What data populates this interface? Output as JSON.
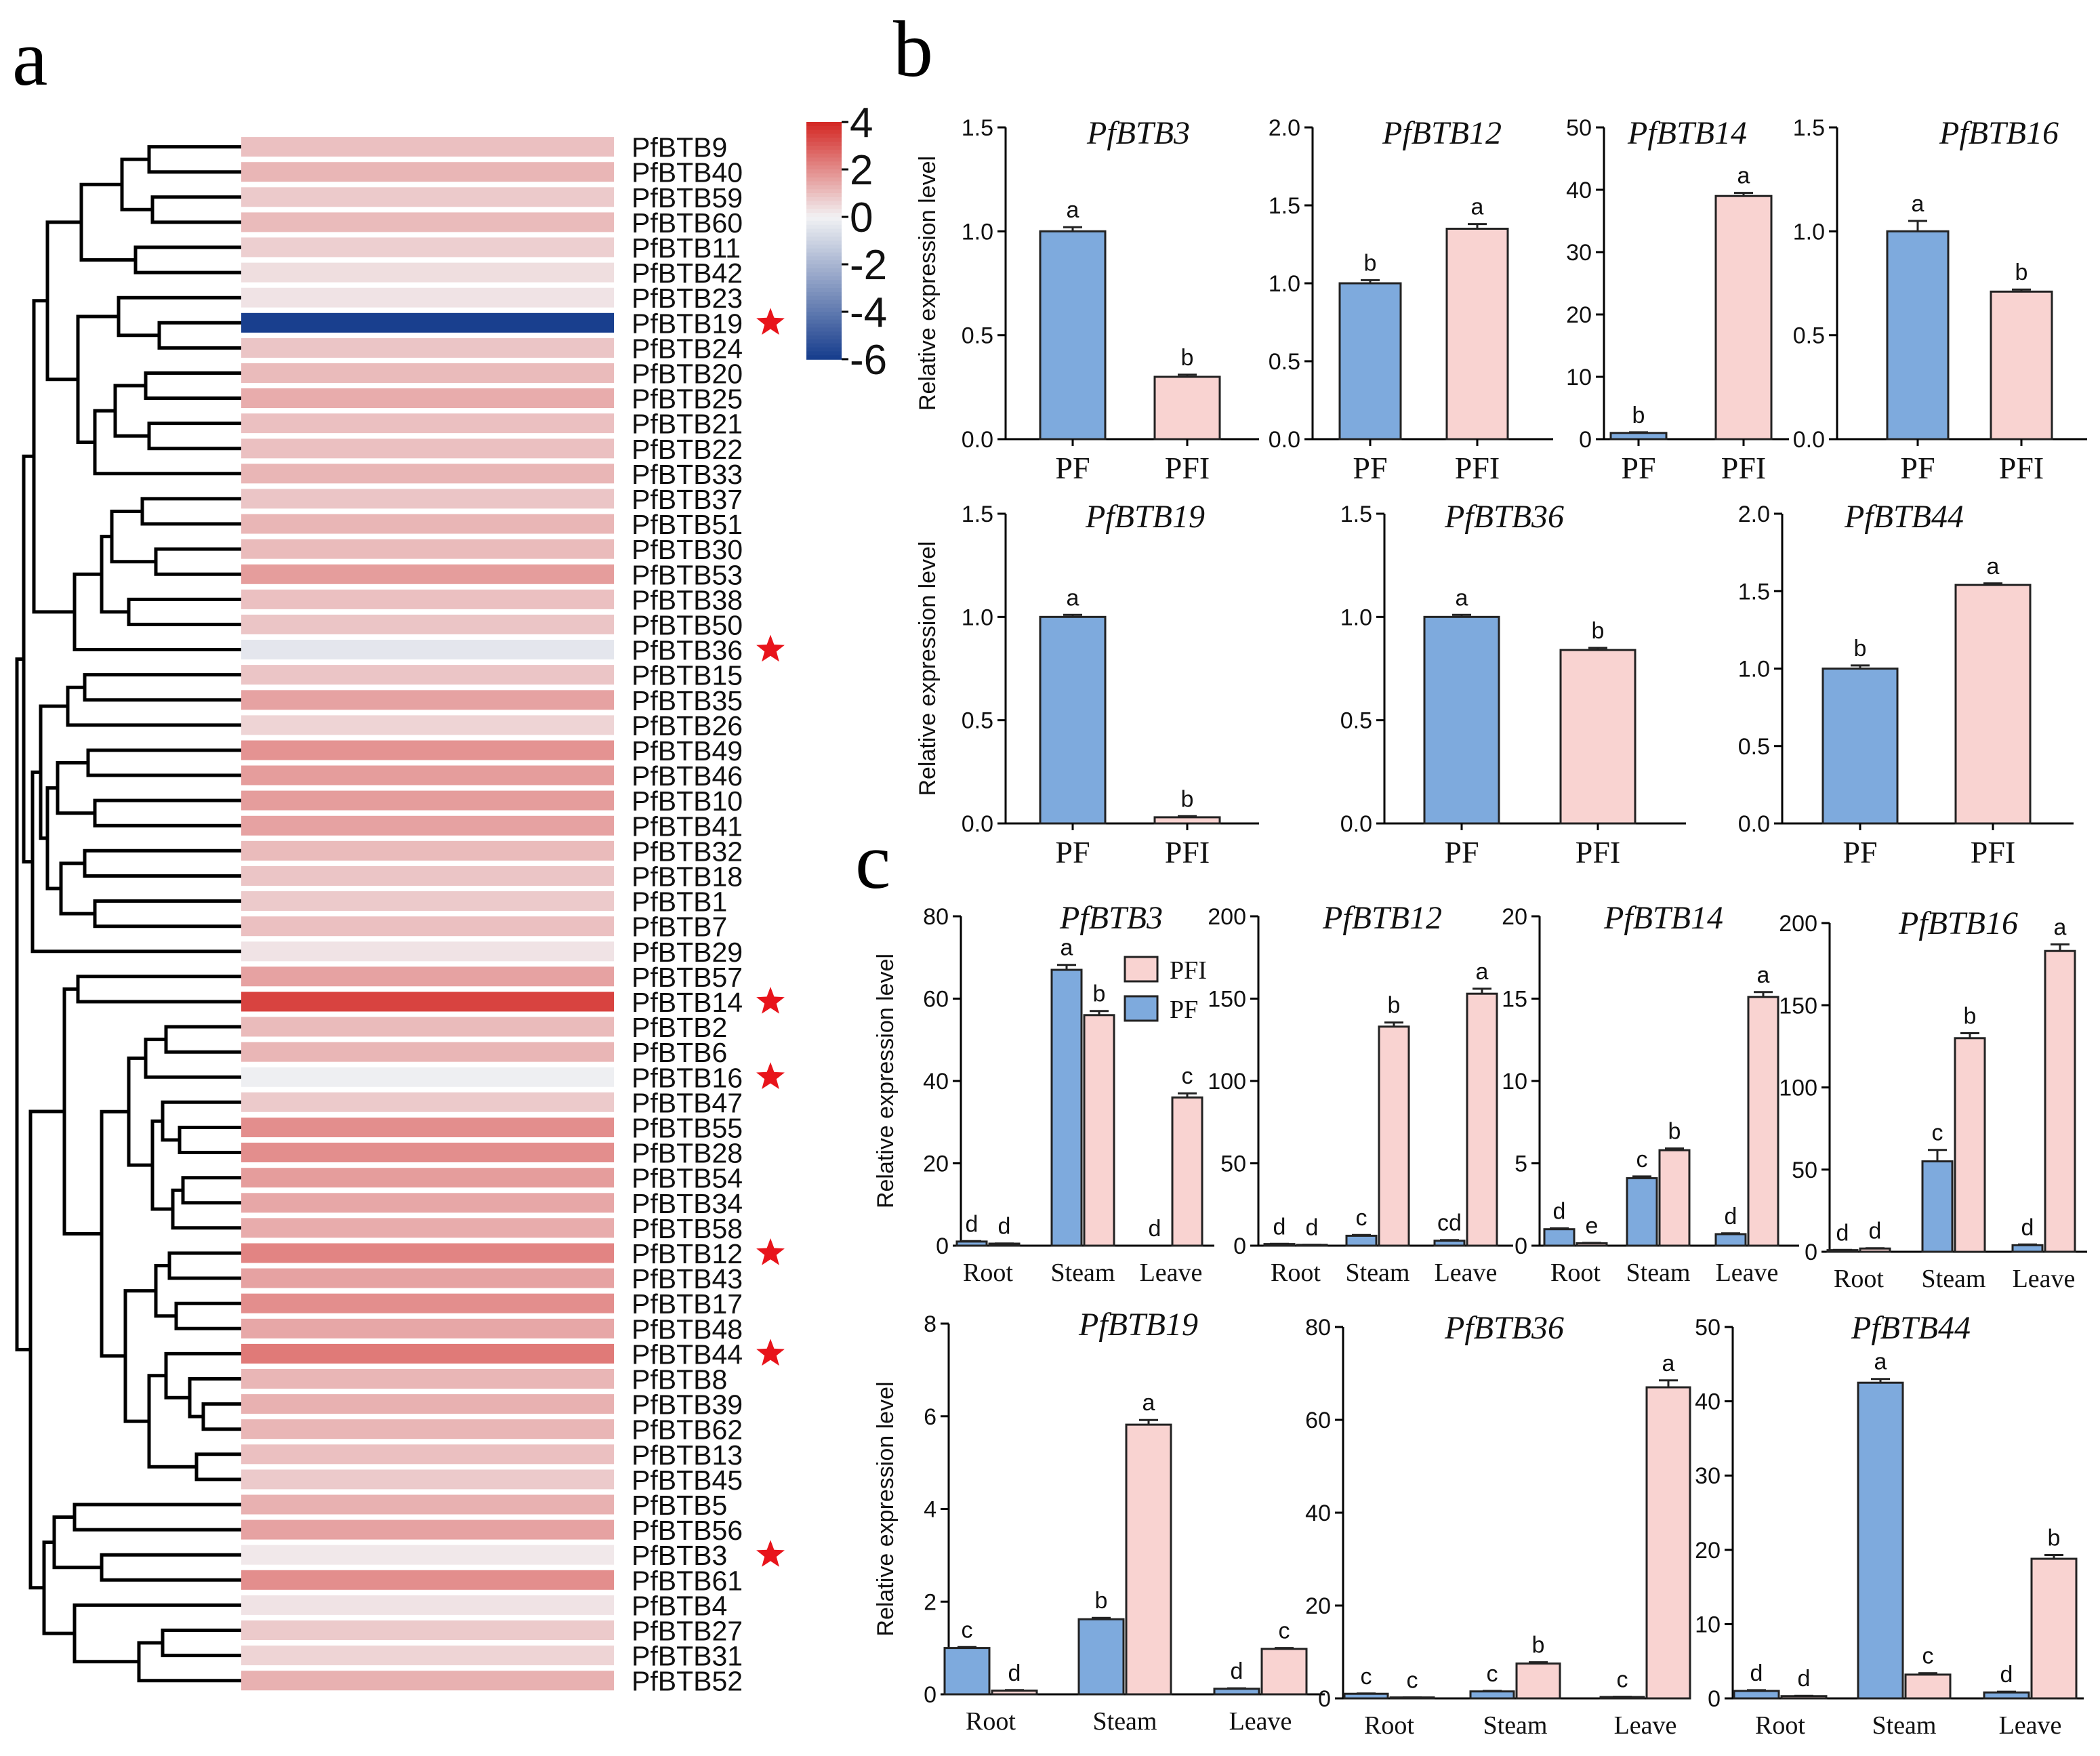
{
  "panel_labels": {
    "a": "a",
    "b": "b",
    "c": "c"
  },
  "colors": {
    "pf": "#7eaadd",
    "pfi": "#f9d3d1",
    "heat_high": "#d42a26",
    "heat_mid": "#f2f2f4",
    "heat_low": "#193f8e",
    "star": "#e8141b"
  },
  "chart_data": [
    {
      "panel": "a",
      "type": "heatmap",
      "title": "",
      "colorbar": {
        "ticks": [
          "4",
          "2",
          "0",
          "-2",
          "-4",
          "-6"
        ],
        "range": [
          -6,
          4
        ]
      },
      "rows": [
        "PfBTB9",
        "PfBTB40",
        "PfBTB59",
        "PfBTB60",
        "PfBTB11",
        "PfBTB42",
        "PfBTB23",
        "PfBTB19",
        "PfBTB24",
        "PfBTB20",
        "PfBTB25",
        "PfBTB21",
        "PfBTB22",
        "PfBTB33",
        "PfBTB37",
        "PfBTB51",
        "PfBTB30",
        "PfBTB53",
        "PfBTB38",
        "PfBTB50",
        "PfBTB36",
        "PfBTB15",
        "PfBTB35",
        "PfBTB26",
        "PfBTB49",
        "PfBTB46",
        "PfBTB10",
        "PfBTB41",
        "PfBTB32",
        "PfBTB18",
        "PfBTB1",
        "PfBTB7",
        "PfBTB29",
        "PfBTB57",
        "PfBTB14",
        "PfBTB2",
        "PfBTB6",
        "PfBTB16",
        "PfBTB47",
        "PfBTB55",
        "PfBTB28",
        "PfBTB54",
        "PfBTB34",
        "PfBTB58",
        "PfBTB12",
        "PfBTB43",
        "PfBTB17",
        "PfBTB48",
        "PfBTB44",
        "PfBTB8",
        "PfBTB39",
        "PfBTB62",
        "PfBTB13",
        "PfBTB45",
        "PfBTB5",
        "PfBTB56",
        "PfBTB3",
        "PfBTB61",
        "PfBTB4",
        "PfBTB27",
        "PfBTB31",
        "PfBTB52"
      ],
      "values": [
        1.0,
        1.2,
        0.8,
        1.1,
        0.7,
        0.4,
        0.3,
        -6.0,
        0.9,
        1.1,
        1.4,
        1.0,
        1.0,
        1.2,
        0.9,
        1.2,
        1.1,
        1.7,
        1.0,
        0.9,
        -0.4,
        0.9,
        1.6,
        0.6,
        1.9,
        1.7,
        1.7,
        1.6,
        1.1,
        0.9,
        0.8,
        1.0,
        0.3,
        1.6,
        3.5,
        1.1,
        1.2,
        -0.1,
        0.8,
        2.0,
        2.0,
        1.7,
        1.5,
        1.4,
        2.2,
        1.6,
        2.0,
        1.5,
        2.4,
        1.2,
        1.3,
        1.2,
        1.0,
        0.8,
        1.3,
        1.6,
        0.2,
        2.0,
        0.3,
        0.8,
        0.6,
        1.3
      ],
      "starred": [
        "PfBTB19",
        "PfBTB36",
        "PfBTB14",
        "PfBTB16",
        "PfBTB12",
        "PfBTB44",
        "PfBTB3"
      ]
    },
    {
      "panel": "b",
      "type": "bar",
      "title": "PfBTB3",
      "ylabel": "Relative expression level",
      "categories": [
        "PF",
        "PFI"
      ],
      "values": [
        1.0,
        0.3
      ],
      "errors": [
        0.02,
        0.01
      ],
      "letters": [
        "a",
        "b"
      ],
      "ylim": [
        0,
        1.5
      ],
      "yticks": [
        "0.0",
        "0.5",
        "1.0",
        "1.5"
      ]
    },
    {
      "panel": "b",
      "type": "bar",
      "title": "PfBTB12",
      "ylabel": "",
      "categories": [
        "PF",
        "PFI"
      ],
      "values": [
        1.0,
        1.35
      ],
      "errors": [
        0.02,
        0.03
      ],
      "letters": [
        "b",
        "a"
      ],
      "ylim": [
        0,
        2.0
      ],
      "yticks": [
        "0.0",
        "0.5",
        "1.0",
        "1.5",
        "2.0"
      ]
    },
    {
      "panel": "b",
      "type": "bar",
      "title": "PfBTB14",
      "ylabel": "",
      "categories": [
        "PF",
        "PFI"
      ],
      "values": [
        1.0,
        39.0
      ],
      "errors": [
        0.1,
        0.5
      ],
      "letters": [
        "b",
        "a"
      ],
      "ylim": [
        0,
        50
      ],
      "yticks": [
        "0",
        "10",
        "20",
        "30",
        "40",
        "50"
      ]
    },
    {
      "panel": "b",
      "type": "bar",
      "title": "PfBTB16",
      "ylabel": "",
      "categories": [
        "PF",
        "PFI"
      ],
      "values": [
        1.0,
        0.71
      ],
      "errors": [
        0.05,
        0.01
      ],
      "letters": [
        "a",
        "b"
      ],
      "ylim": [
        0,
        1.5
      ],
      "yticks": [
        "0.0",
        "0.5",
        "1.0",
        "1.5"
      ]
    },
    {
      "panel": "b",
      "type": "bar",
      "title": "PfBTB19",
      "ylabel": "Relative expression level",
      "categories": [
        "PF",
        "PFI"
      ],
      "values": [
        1.0,
        0.03
      ],
      "errors": [
        0.01,
        0.005
      ],
      "letters": [
        "a",
        "b"
      ],
      "ylim": [
        0,
        1.5
      ],
      "yticks": [
        "0.0",
        "0.5",
        "1.0",
        "1.5"
      ]
    },
    {
      "panel": "b",
      "type": "bar",
      "title": "PfBTB36",
      "ylabel": "",
      "categories": [
        "PF",
        "PFI"
      ],
      "values": [
        1.0,
        0.84
      ],
      "errors": [
        0.01,
        0.01
      ],
      "letters": [
        "a",
        "b"
      ],
      "ylim": [
        0,
        1.5
      ],
      "yticks": [
        "0.0",
        "0.5",
        "1.0",
        "1.5"
      ]
    },
    {
      "panel": "b",
      "type": "bar",
      "title": "PfBTB44",
      "ylabel": "",
      "categories": [
        "PF",
        "PFI"
      ],
      "values": [
        1.0,
        1.54
      ],
      "errors": [
        0.02,
        0.01
      ],
      "letters": [
        "b",
        "a"
      ],
      "ylim": [
        0,
        2.0
      ],
      "yticks": [
        "0.0",
        "0.5",
        "1.0",
        "1.5",
        "2.0"
      ]
    },
    {
      "panel": "c",
      "type": "bar",
      "title": "PfBTB3",
      "ylabel": "Relative  expression level",
      "categories": [
        "Root",
        "Steam",
        "Leave"
      ],
      "series": [
        {
          "name": "PF",
          "values": [
            1.0,
            67.0,
            0.0
          ],
          "errors": [
            0.1,
            1.2,
            0.0
          ],
          "letters": [
            "d",
            "a",
            "d"
          ]
        },
        {
          "name": "PFI",
          "values": [
            0.5,
            56.0,
            36.0
          ],
          "errors": [
            0.05,
            1.0,
            1.0
          ],
          "letters": [
            "d",
            "b",
            "c"
          ]
        }
      ],
      "legend": [
        "PFI",
        "PF"
      ],
      "ylim": [
        0,
        80
      ],
      "yticks": [
        "0",
        "20",
        "40",
        "60",
        "80"
      ]
    },
    {
      "panel": "c",
      "type": "bar",
      "title": "PfBTB12",
      "ylabel": "",
      "categories": [
        "Root",
        "Steam",
        "Leave"
      ],
      "series": [
        {
          "name": "PF",
          "values": [
            1.0,
            6.0,
            3.0
          ],
          "errors": [
            0.1,
            0.5,
            0.4
          ],
          "letters": [
            "d",
            "c",
            "cd"
          ]
        },
        {
          "name": "PFI",
          "values": [
            0.5,
            133.0,
            153.0
          ],
          "errors": [
            0.05,
            2.5,
            3.0
          ],
          "letters": [
            "d",
            "b",
            "a"
          ]
        }
      ],
      "ylim": [
        0,
        200
      ],
      "yticks": [
        "0",
        "50",
        "100",
        "150",
        "200"
      ]
    },
    {
      "panel": "c",
      "type": "bar",
      "title": "PfBTB14",
      "ylabel": "",
      "categories": [
        "Root",
        "Steam",
        "Leave"
      ],
      "series": [
        {
          "name": "PF",
          "values": [
            1.0,
            4.1,
            0.7
          ],
          "errors": [
            0.05,
            0.1,
            0.05
          ],
          "letters": [
            "d",
            "c",
            "d"
          ]
        },
        {
          "name": "PFI",
          "values": [
            0.15,
            5.8,
            15.1
          ],
          "errors": [
            0.02,
            0.1,
            0.3
          ],
          "letters": [
            "e",
            "b",
            "a"
          ]
        }
      ],
      "ylim": [
        0,
        20
      ],
      "yticks": [
        "0",
        "5",
        "10",
        "15",
        "20"
      ]
    },
    {
      "panel": "c",
      "type": "bar",
      "title": "PfBTB16",
      "ylabel": "",
      "categories": [
        "Root",
        "Steam",
        "Leave"
      ],
      "series": [
        {
          "name": "PF",
          "values": [
            1.0,
            55.0,
            4.0
          ],
          "errors": [
            0.1,
            7.0,
            0.4
          ],
          "letters": [
            "d",
            "c",
            "d"
          ]
        },
        {
          "name": "PFI",
          "values": [
            2.0,
            130.0,
            183.0
          ],
          "errors": [
            0.2,
            3.0,
            4.0
          ],
          "letters": [
            "d",
            "b",
            "a"
          ]
        }
      ],
      "ylim": [
        0,
        200
      ],
      "yticks": [
        "0",
        "50",
        "100",
        "150",
        "200"
      ]
    },
    {
      "panel": "c",
      "type": "bar",
      "title": "PfBTB19",
      "ylabel": "Relative  expression level",
      "categories": [
        "Root",
        "Steam",
        "Leave"
      ],
      "series": [
        {
          "name": "PF",
          "values": [
            1.0,
            1.62,
            0.12
          ],
          "errors": [
            0.02,
            0.03,
            0.01
          ],
          "letters": [
            "c",
            "b",
            "d"
          ]
        },
        {
          "name": "PFI",
          "values": [
            0.08,
            5.82,
            0.98
          ],
          "errors": [
            0.01,
            0.1,
            0.02
          ],
          "letters": [
            "d",
            "a",
            "c"
          ]
        }
      ],
      "ylim": [
        0,
        8
      ],
      "yticks": [
        "0",
        "2",
        "4",
        "6",
        "8"
      ]
    },
    {
      "panel": "c",
      "type": "bar",
      "title": "PfBTB36",
      "ylabel": "",
      "categories": [
        "Root",
        "Steam",
        "Leave"
      ],
      "series": [
        {
          "name": "PF",
          "values": [
            1.0,
            1.5,
            0.3
          ],
          "errors": [
            0.05,
            0.1,
            0.05
          ],
          "letters": [
            "c",
            "c",
            "c"
          ]
        },
        {
          "name": "PFI",
          "values": [
            0.2,
            7.5,
            67.0
          ],
          "errors": [
            0.02,
            0.3,
            1.5
          ],
          "letters": [
            "c",
            "b",
            "a"
          ]
        }
      ],
      "ylim": [
        0,
        80
      ],
      "yticks": [
        "0",
        "20",
        "40",
        "60",
        "80"
      ]
    },
    {
      "panel": "c",
      "type": "bar",
      "title": "PfBTB44",
      "ylabel": "",
      "categories": [
        "Root",
        "Steam",
        "Leave"
      ],
      "series": [
        {
          "name": "PF",
          "values": [
            1.0,
            42.5,
            0.8
          ],
          "errors": [
            0.1,
            0.5,
            0.1
          ],
          "letters": [
            "d",
            "a",
            "d"
          ]
        },
        {
          "name": "PFI",
          "values": [
            0.3,
            3.2,
            18.8
          ],
          "errors": [
            0.05,
            0.2,
            0.5
          ],
          "letters": [
            "d",
            "c",
            "b"
          ]
        }
      ],
      "ylim": [
        0,
        50
      ],
      "yticks": [
        "0",
        "10",
        "20",
        "30",
        "40",
        "50"
      ]
    }
  ]
}
